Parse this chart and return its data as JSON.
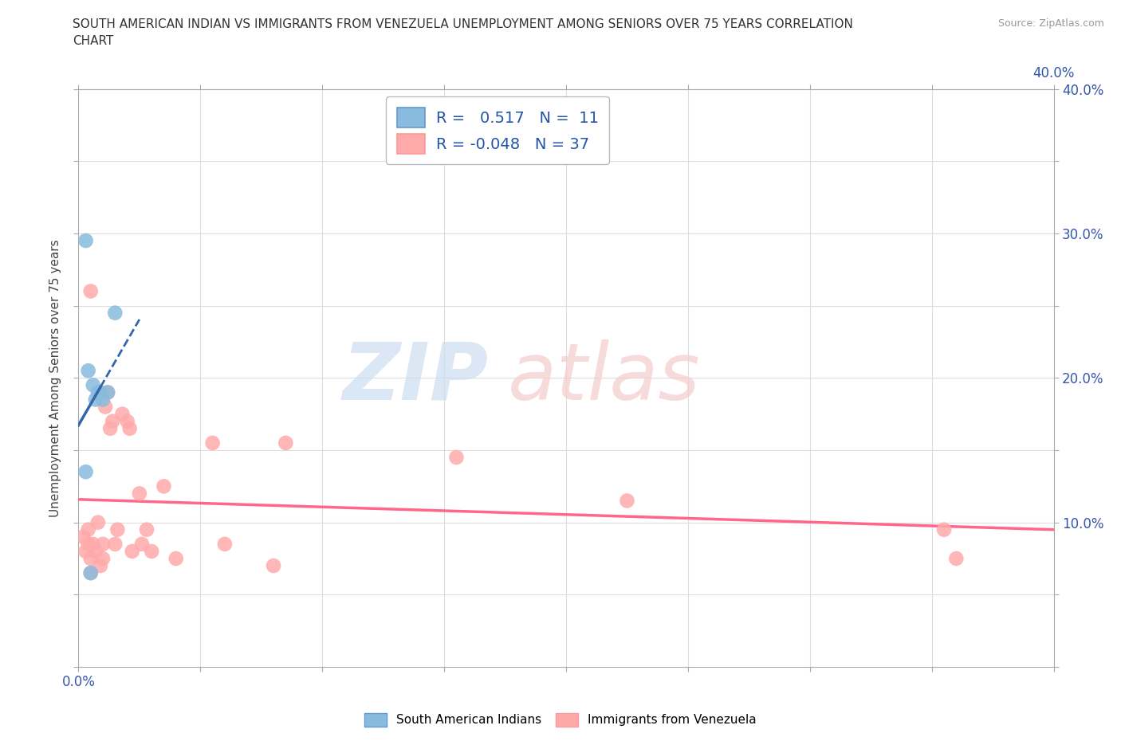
{
  "title": "SOUTH AMERICAN INDIAN VS IMMIGRANTS FROM VENEZUELA UNEMPLOYMENT AMONG SENIORS OVER 75 YEARS CORRELATION\nCHART",
  "source": "Source: ZipAtlas.com",
  "ylabel": "Unemployment Among Seniors over 75 years",
  "xlim": [
    0.0,
    0.4
  ],
  "ylim": [
    0.0,
    0.4
  ],
  "xticks": [
    0.0,
    0.05,
    0.1,
    0.15,
    0.2,
    0.25,
    0.3,
    0.35,
    0.4
  ],
  "yticks": [
    0.0,
    0.05,
    0.1,
    0.15,
    0.2,
    0.25,
    0.3,
    0.35,
    0.4
  ],
  "xticklabels_left": [
    "0.0%",
    "",
    "",
    "",
    "",
    "",
    "",
    "",
    ""
  ],
  "xticklabels_right": [
    "",
    "",
    "",
    "",
    "",
    "",
    "",
    "",
    "40.0%"
  ],
  "yticklabels_left": [
    "",
    "",
    "",
    "",
    "",
    "",
    "",
    "",
    ""
  ],
  "yticklabels_right": [
    "",
    "",
    "10.0%",
    "",
    "20.0%",
    "",
    "30.0%",
    "",
    "40.0%"
  ],
  "blue_R": 0.517,
  "blue_N": 11,
  "pink_R": -0.048,
  "pink_N": 37,
  "blue_color": "#88BBDD",
  "pink_color": "#FFAAAA",
  "blue_line_color": "#3366AA",
  "pink_line_color": "#FF6688",
  "blue_scatter_x": [
    0.003,
    0.003,
    0.004,
    0.005,
    0.006,
    0.007,
    0.008,
    0.009,
    0.01,
    0.012,
    0.015
  ],
  "blue_scatter_y": [
    0.295,
    0.135,
    0.205,
    0.065,
    0.195,
    0.185,
    0.19,
    0.19,
    0.185,
    0.19,
    0.245
  ],
  "pink_scatter_x": [
    0.002,
    0.003,
    0.004,
    0.004,
    0.005,
    0.005,
    0.006,
    0.007,
    0.008,
    0.009,
    0.01,
    0.01,
    0.011,
    0.012,
    0.013,
    0.014,
    0.015,
    0.016,
    0.018,
    0.02,
    0.021,
    0.022,
    0.025,
    0.026,
    0.028,
    0.03,
    0.035,
    0.04,
    0.055,
    0.06,
    0.08,
    0.085,
    0.155,
    0.225,
    0.355,
    0.36,
    0.005
  ],
  "pink_scatter_y": [
    0.09,
    0.08,
    0.085,
    0.095,
    0.065,
    0.075,
    0.085,
    0.08,
    0.1,
    0.07,
    0.085,
    0.075,
    0.18,
    0.19,
    0.165,
    0.17,
    0.085,
    0.095,
    0.175,
    0.17,
    0.165,
    0.08,
    0.12,
    0.085,
    0.095,
    0.08,
    0.125,
    0.075,
    0.155,
    0.085,
    0.07,
    0.155,
    0.145,
    0.115,
    0.095,
    0.075,
    0.26
  ]
}
